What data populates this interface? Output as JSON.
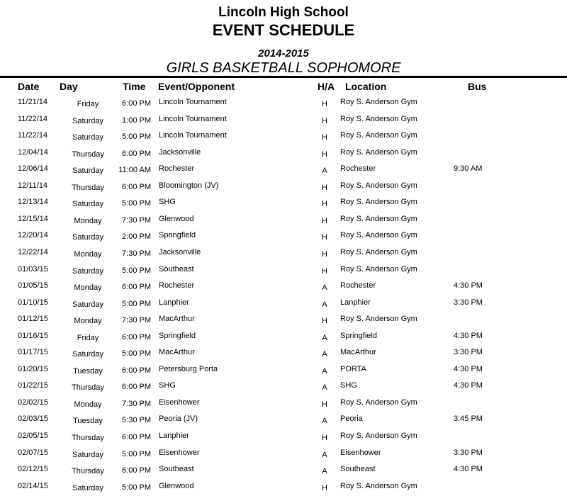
{
  "header": {
    "school": "Lincoln High School",
    "title": "EVENT SCHEDULE",
    "season": "2014-2015",
    "sport": "GIRLS BASKETBALL SOPHOMORE"
  },
  "columns": {
    "date": "Date",
    "day": "Day",
    "time": "Time",
    "event": "Event/Opponent",
    "ha": "H/A",
    "location": "Location",
    "bus": "Bus"
  },
  "rows": [
    {
      "date": "11/21/14",
      "day": "Friday",
      "time": "6:00 PM",
      "event": "Lincoln Tournament",
      "ha": "H",
      "location": "Roy S. Anderson Gym",
      "bus": ""
    },
    {
      "date": "11/22/14",
      "day": "Saturday",
      "time": "1:00 PM",
      "event": "Lincoln Tournament",
      "ha": "H",
      "location": "Roy S. Anderson Gym",
      "bus": ""
    },
    {
      "date": "11/22/14",
      "day": "Saturday",
      "time": "5:00 PM",
      "event": "Lincoln Tournament",
      "ha": "H",
      "location": "Roy S. Anderson Gym",
      "bus": ""
    },
    {
      "date": "12/04/14",
      "day": "Thursday",
      "time": "6:00 PM",
      "event": "Jacksonville",
      "ha": "H",
      "location": "Roy S. Anderson Gym",
      "bus": ""
    },
    {
      "date": "12/06/14",
      "day": "Saturday",
      "time": "11:00 AM",
      "event": "Rochester",
      "ha": "A",
      "location": "Rochester",
      "bus": "9:30 AM"
    },
    {
      "date": "12/11/14",
      "day": "Thursday",
      "time": "6:00 PM",
      "event": "Bloomington (JV)",
      "ha": "H",
      "location": "Roy S. Anderson Gym",
      "bus": ""
    },
    {
      "date": "12/13/14",
      "day": "Saturday",
      "time": "5:00 PM",
      "event": "SHG",
      "ha": "H",
      "location": "Roy S. Anderson Gym",
      "bus": ""
    },
    {
      "date": "12/15/14",
      "day": "Monday",
      "time": "7:30 PM",
      "event": "Glenwood",
      "ha": "H",
      "location": "Roy S. Anderson Gym",
      "bus": ""
    },
    {
      "date": "12/20/14",
      "day": "Saturday",
      "time": "2:00 PM",
      "event": "Springfield",
      "ha": "H",
      "location": "Roy S. Anderson Gym",
      "bus": ""
    },
    {
      "date": "12/22/14",
      "day": "Monday",
      "time": "7:30 PM",
      "event": "Jacksonville",
      "ha": "H",
      "location": "Roy S. Anderson Gym",
      "bus": ""
    },
    {
      "date": "01/03/15",
      "day": "Saturday",
      "time": "5:00 PM",
      "event": "Southeast",
      "ha": "H",
      "location": "Roy S. Anderson Gym",
      "bus": ""
    },
    {
      "date": "01/05/15",
      "day": "Monday",
      "time": "6:00 PM",
      "event": "Rochester",
      "ha": "A",
      "location": "Rochester",
      "bus": "4:30 PM"
    },
    {
      "date": "01/10/15",
      "day": "Saturday",
      "time": "5:00 PM",
      "event": "Lanphier",
      "ha": "A",
      "location": "Lanphier",
      "bus": "3:30 PM"
    },
    {
      "date": "01/12/15",
      "day": "Monday",
      "time": "7:30 PM",
      "event": "MacArthur",
      "ha": "H",
      "location": "Roy S. Anderson Gym",
      "bus": ""
    },
    {
      "date": "01/16/15",
      "day": "Friday",
      "time": "6:00 PM",
      "event": "Springfield",
      "ha": "A",
      "location": "Springfield",
      "bus": "4:30 PM"
    },
    {
      "date": "01/17/15",
      "day": "Saturday",
      "time": "5:00 PM",
      "event": "MacArthur",
      "ha": "A",
      "location": "MacArthur",
      "bus": "3:30 PM"
    },
    {
      "date": "01/20/15",
      "day": "Tuesday",
      "time": "6:00 PM",
      "event": "Petersburg Porta",
      "ha": "A",
      "location": "PORTA",
      "bus": "4:30 PM"
    },
    {
      "date": "01/22/15",
      "day": "Thursday",
      "time": "6:00 PM",
      "event": "SHG",
      "ha": "A",
      "location": "SHG",
      "bus": "4:30 PM"
    },
    {
      "date": "02/02/15",
      "day": "Monday",
      "time": "7:30 PM",
      "event": "Eisenhower",
      "ha": "H",
      "location": "Roy S. Anderson Gym",
      "bus": ""
    },
    {
      "date": "02/03/15",
      "day": "Tuesday",
      "time": "5:30 PM",
      "event": "Peoria (JV)",
      "ha": "A",
      "location": "Peoria",
      "bus": "3:45 PM"
    },
    {
      "date": "02/05/15",
      "day": "Thursday",
      "time": "6:00 PM",
      "event": "Lanphier",
      "ha": "H",
      "location": "Roy S. Anderson Gym",
      "bus": ""
    },
    {
      "date": "02/07/15",
      "day": "Saturday",
      "time": "5:00 PM",
      "event": "Eisenhower",
      "ha": "A",
      "location": "Eisenhower",
      "bus": "3:30 PM"
    },
    {
      "date": "02/12/15",
      "day": "Thursday",
      "time": "6:00 PM",
      "event": "Southeast",
      "ha": "A",
      "location": "Southeast",
      "bus": "4:30 PM"
    },
    {
      "date": "02/14/15",
      "day": "Saturday",
      "time": "5:00 PM",
      "event": "Glenwood",
      "ha": "H",
      "location": "Roy S. Anderson Gym",
      "bus": ""
    }
  ]
}
